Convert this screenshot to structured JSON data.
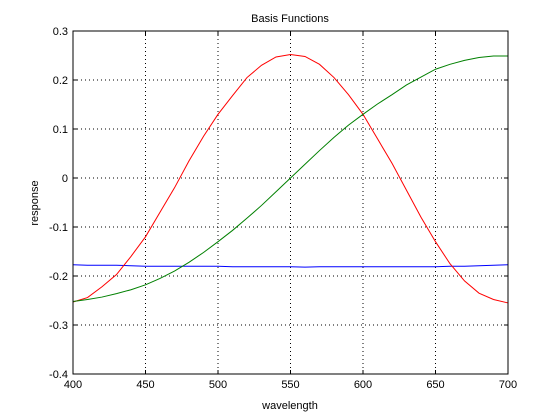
{
  "chart_data": {
    "type": "line",
    "title": "Basis Functions",
    "xlabel": "wavelength",
    "ylabel": "response",
    "xlim": [
      400,
      700
    ],
    "ylim": [
      -0.4,
      0.3
    ],
    "xticks": [
      400,
      450,
      500,
      550,
      600,
      650,
      700
    ],
    "yticks": [
      -0.4,
      -0.3,
      -0.2,
      -0.1,
      0,
      0.1,
      0.2,
      0.3
    ],
    "xtick_labels": [
      "400",
      "450",
      "500",
      "550",
      "600",
      "650",
      "700"
    ],
    "ytick_labels": [
      "-0.4",
      "-0.3",
      "-0.2",
      "-0.1",
      "0",
      "0.1",
      "0.2",
      "0.3"
    ],
    "grid": true,
    "x": [
      400,
      410,
      420,
      430,
      440,
      450,
      460,
      470,
      480,
      490,
      500,
      510,
      520,
      530,
      540,
      550,
      560,
      570,
      580,
      590,
      600,
      610,
      620,
      630,
      640,
      650,
      660,
      670,
      680,
      690,
      700
    ],
    "series": [
      {
        "color": "#0000ff",
        "values": [
          -0.177,
          -0.178,
          -0.178,
          -0.178,
          -0.179,
          -0.18,
          -0.18,
          -0.18,
          -0.18,
          -0.18,
          -0.18,
          -0.181,
          -0.181,
          -0.181,
          -0.181,
          -0.181,
          -0.182,
          -0.181,
          -0.181,
          -0.181,
          -0.181,
          -0.181,
          -0.181,
          -0.181,
          -0.181,
          -0.181,
          -0.18,
          -0.18,
          -0.179,
          -0.178,
          -0.177
        ]
      },
      {
        "color": "#ff0000",
        "values": [
          -0.253,
          -0.244,
          -0.222,
          -0.197,
          -0.16,
          -0.12,
          -0.07,
          -0.02,
          0.035,
          0.085,
          0.13,
          0.168,
          0.205,
          0.23,
          0.247,
          0.252,
          0.248,
          0.232,
          0.205,
          0.17,
          0.13,
          0.08,
          0.03,
          -0.025,
          -0.08,
          -0.13,
          -0.175,
          -0.21,
          -0.235,
          -0.248,
          -0.255
        ]
      },
      {
        "color": "#008000",
        "values": [
          -0.252,
          -0.248,
          -0.243,
          -0.236,
          -0.228,
          -0.218,
          -0.205,
          -0.19,
          -0.172,
          -0.152,
          -0.13,
          -0.107,
          -0.082,
          -0.056,
          -0.028,
          0.0,
          0.028,
          0.056,
          0.083,
          0.108,
          0.13,
          0.151,
          0.17,
          0.19,
          0.206,
          0.222,
          0.232,
          0.24,
          0.246,
          0.249,
          0.249
        ]
      }
    ]
  }
}
